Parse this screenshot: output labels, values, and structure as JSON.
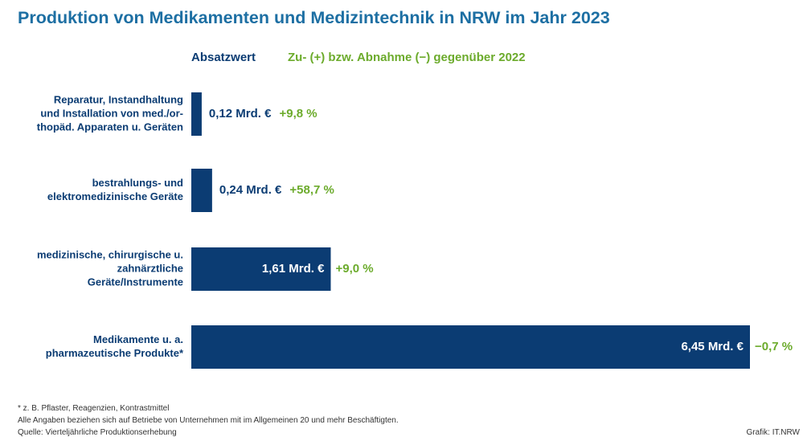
{
  "title": "Produktion von Medikamenten und Medizintechnik in NRW im Jahr 2023",
  "legend": {
    "value_label": "Absatzwert",
    "change_label": "Zu- (+) bzw. Abnahme (−) gegenüber 2022"
  },
  "colors": {
    "bar": "#0b3c73",
    "change": "#6cab2c",
    "title": "#1d6fa3"
  },
  "chart_data": {
    "type": "bar",
    "orientation": "horizontal",
    "categories": [
      [
        "Reparatur, Instandhaltung",
        "und Installation von med./or-",
        "thopäd. Apparaten u. Geräten"
      ],
      [
        "bestrahlungs- und",
        "elektromedizinische Geräte"
      ],
      [
        "medizinische, chirurgische u.",
        "zahnärztliche",
        "Geräte/Instrumente"
      ],
      [
        "Medikamente u. a.",
        "pharmazeutische Produkte*"
      ]
    ],
    "values": [
      0.12,
      0.24,
      1.61,
      6.45
    ],
    "value_labels": [
      "0,12 Mrd. €",
      "0,24 Mrd. €",
      "1,61 Mrd. €",
      "6,45 Mrd. €"
    ],
    "changes": [
      9.8,
      58.7,
      9.0,
      -0.7
    ],
    "change_labels": [
      "+9,8 %",
      "+58,7 %",
      "+9,0 %",
      "−0,7 %"
    ],
    "unit": "Mrd. €",
    "xlim": [
      0,
      6.45
    ]
  },
  "footnotes": [
    "* z. B. Pflaster, Reagenzien, Kontrastmittel",
    "Alle Angaben beziehen sich auf Betriebe von Unternehmen mit im Allgemeinen 20 und mehr Beschäftigten.",
    "Quelle: Vierteljährliche Produktionserhebung"
  ],
  "credit": "Grafik: IT.NRW"
}
